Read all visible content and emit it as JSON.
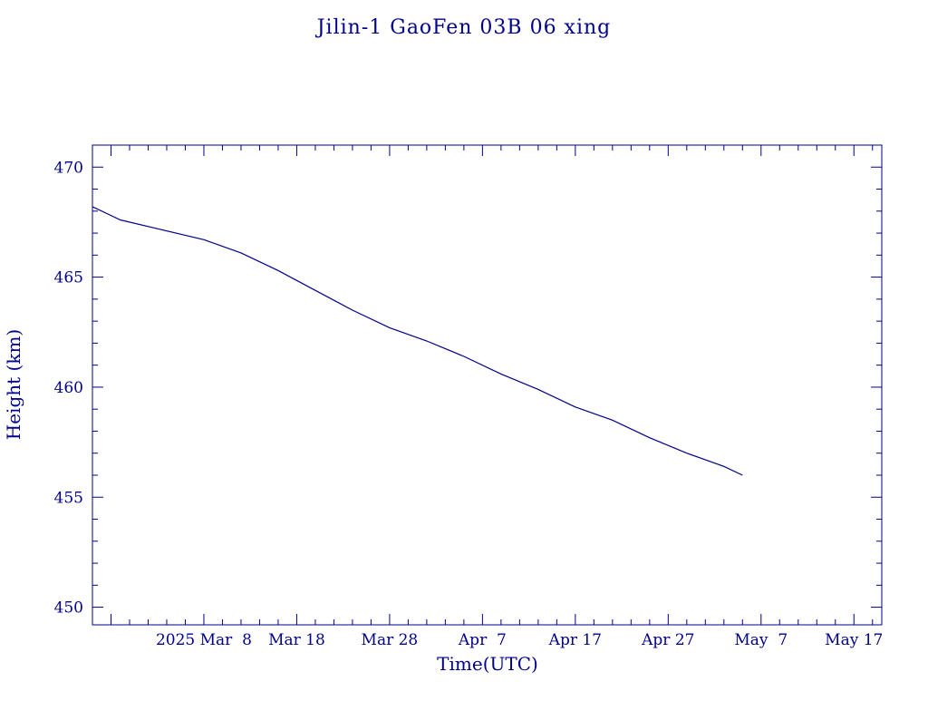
{
  "chart_data": {
    "type": "line",
    "title": "Jilin-1 GaoFen 03B 06 xing",
    "xlabel": "Time(UTC)",
    "ylabel": "Height (km)",
    "xlim": [
      "2025-02-24",
      "2025-05-20"
    ],
    "ylim": [
      449.2,
      471.0
    ],
    "grid": false,
    "colors": {
      "axes": "#00008b",
      "line": "#00008b"
    },
    "x_ticks": [
      {
        "date": "2025-02-26",
        "label": ""
      },
      {
        "date": "2025-03-08",
        "label": "2025 Mar  8"
      },
      {
        "date": "2025-03-18",
        "label": "Mar 18"
      },
      {
        "date": "2025-03-28",
        "label": "Mar 28"
      },
      {
        "date": "2025-04-07",
        "label": "Apr  7"
      },
      {
        "date": "2025-04-17",
        "label": "Apr 17"
      },
      {
        "date": "2025-04-27",
        "label": "Apr 27"
      },
      {
        "date": "2025-05-07",
        "label": "May  7"
      },
      {
        "date": "2025-05-17",
        "label": "May 17"
      }
    ],
    "y_ticks": [
      450,
      455,
      460,
      465,
      470
    ],
    "series": [
      {
        "x": [
          "2025-02-24",
          "2025-02-27",
          "2025-03-03",
          "2025-03-08",
          "2025-03-12",
          "2025-03-16",
          "2025-03-20",
          "2025-03-24",
          "2025-03-28",
          "2025-04-01",
          "2025-04-05",
          "2025-04-09",
          "2025-04-13",
          "2025-04-17",
          "2025-04-21",
          "2025-04-25",
          "2025-04-29",
          "2025-05-03",
          "2025-05-05"
        ],
        "y": [
          468.2,
          467.6,
          467.2,
          466.7,
          466.1,
          465.3,
          464.4,
          463.5,
          462.7,
          462.1,
          461.4,
          460.6,
          459.9,
          459.1,
          458.5,
          457.7,
          457.0,
          456.4,
          456.0
        ]
      }
    ]
  }
}
